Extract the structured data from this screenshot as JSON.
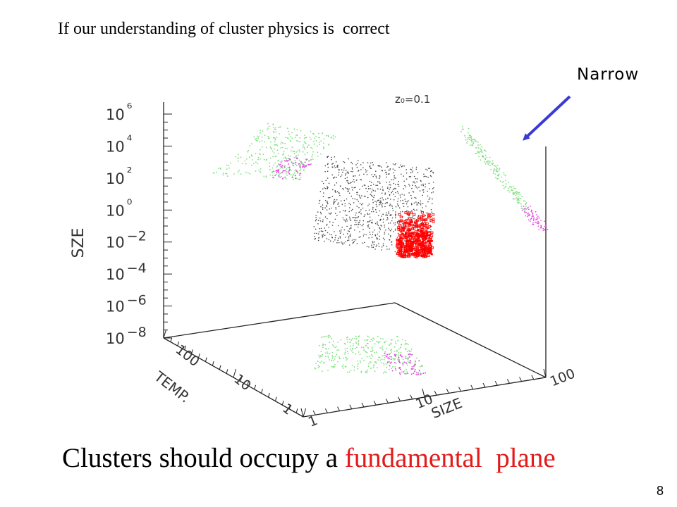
{
  "slide": {
    "top_caption": "If our understanding of cluster physics is  correct",
    "annotation": "Narrow",
    "bottom_caption_lead": "Clusters should occupy a ",
    "bottom_caption_highlight": "fundamental  plane",
    "page_number": "8"
  },
  "chart_data": {
    "type": "scatter",
    "projection": "3d",
    "title": "z₀=0.1",
    "axes": {
      "z": {
        "label": "SZE",
        "scale": "log",
        "tick_labels": [
          "10−8",
          "10−6",
          "10−4",
          "10−2",
          "10⁰",
          "10²",
          "10⁴",
          "10⁶"
        ]
      },
      "y": {
        "label": "TEMP.",
        "scale": "log",
        "tick_labels": [
          "1",
          "10",
          "100"
        ]
      },
      "x": {
        "label": "SIZE",
        "scale": "log",
        "tick_labels": [
          "1",
          "10",
          "100"
        ]
      }
    },
    "colors": {
      "projection_points": "#7ee07e",
      "projection_highlight": "#e34ee3",
      "cloud_points": "#444444",
      "plane_points": "#ff0000",
      "arrow": "#3a3ad6"
    }
  }
}
